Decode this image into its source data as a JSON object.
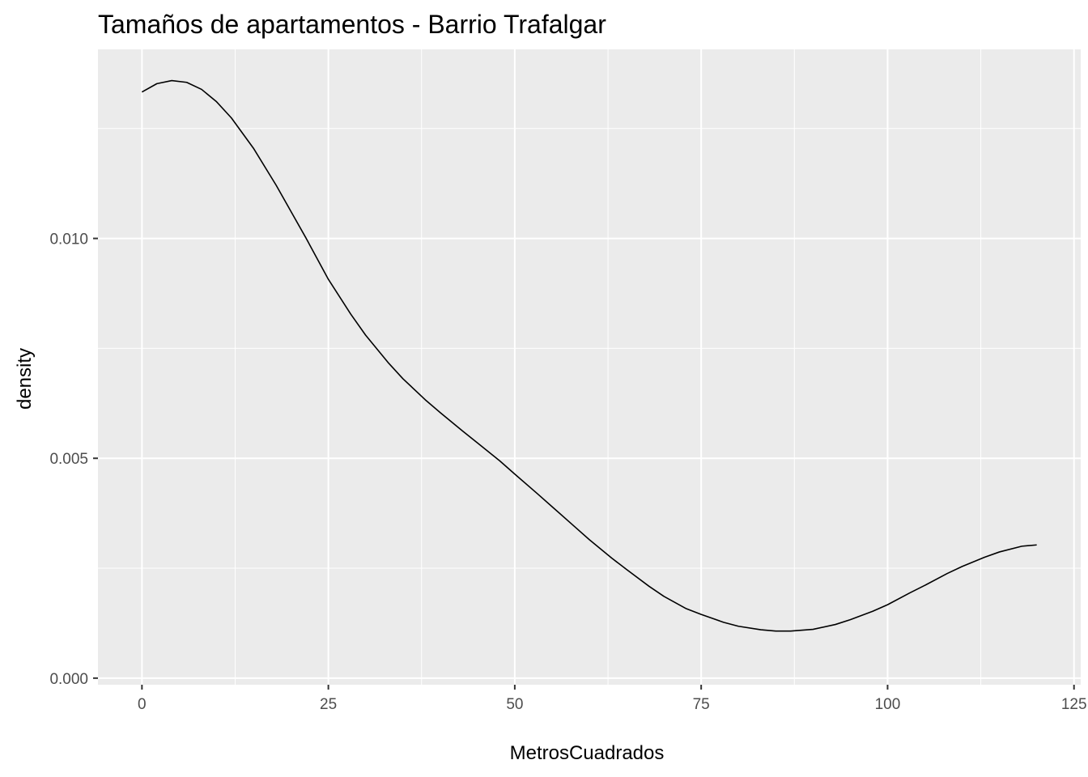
{
  "chart_data": {
    "type": "line",
    "title": "Tamaños de apartamentos - Barrio Trafalgar",
    "xlabel": "MetrosCuadrados",
    "ylabel": "density",
    "xlim": [
      -5.9,
      125.9
    ],
    "ylim": [
      -0.00015,
      0.0143
    ],
    "x_ticks": [
      0,
      25,
      50,
      75,
      100,
      125
    ],
    "x_tick_labels": [
      "0",
      "25",
      "50",
      "75",
      "100",
      "125"
    ],
    "y_ticks": [
      0.0,
      0.005,
      0.01
    ],
    "y_tick_labels": [
      "0.000",
      "0.005",
      "0.010"
    ],
    "x_minor_ticks": [
      12.5,
      37.5,
      62.5,
      87.5,
      112.5
    ],
    "y_minor_ticks": [
      0.0025,
      0.0075,
      0.0125
    ],
    "grid": true,
    "legend": "none",
    "colors": {
      "panel": "#ebebeb",
      "grid": "#ffffff",
      "line": "#000000"
    },
    "series": [
      {
        "x": [
          0,
          2,
          4,
          6,
          8,
          10,
          12,
          15,
          18,
          20,
          22,
          25,
          28,
          30,
          33,
          35,
          38,
          40,
          43,
          45,
          48,
          50,
          53,
          55,
          58,
          60,
          63,
          65,
          68,
          70,
          73,
          75,
          78,
          80,
          83,
          85,
          87,
          90,
          93,
          95,
          98,
          100,
          103,
          105,
          108,
          110,
          113,
          115,
          118,
          120
        ],
        "y": [
          0.01333,
          0.01352,
          0.01359,
          0.01355,
          0.01339,
          0.01311,
          0.01274,
          0.01204,
          0.01121,
          0.01061,
          0.01001,
          0.00907,
          0.00828,
          0.0078,
          0.00718,
          0.00681,
          0.00633,
          0.00604,
          0.00562,
          0.00535,
          0.00494,
          0.00464,
          0.0042,
          0.0039,
          0.00345,
          0.00315,
          0.00273,
          0.00247,
          0.00209,
          0.00186,
          0.00158,
          0.00145,
          0.00127,
          0.00118,
          0.0011,
          0.00107,
          0.00107,
          0.00111,
          0.00122,
          0.00133,
          0.00152,
          0.00167,
          0.00194,
          0.00211,
          0.00238,
          0.00254,
          0.00275,
          0.00287,
          0.003,
          0.00303
        ]
      }
    ]
  }
}
